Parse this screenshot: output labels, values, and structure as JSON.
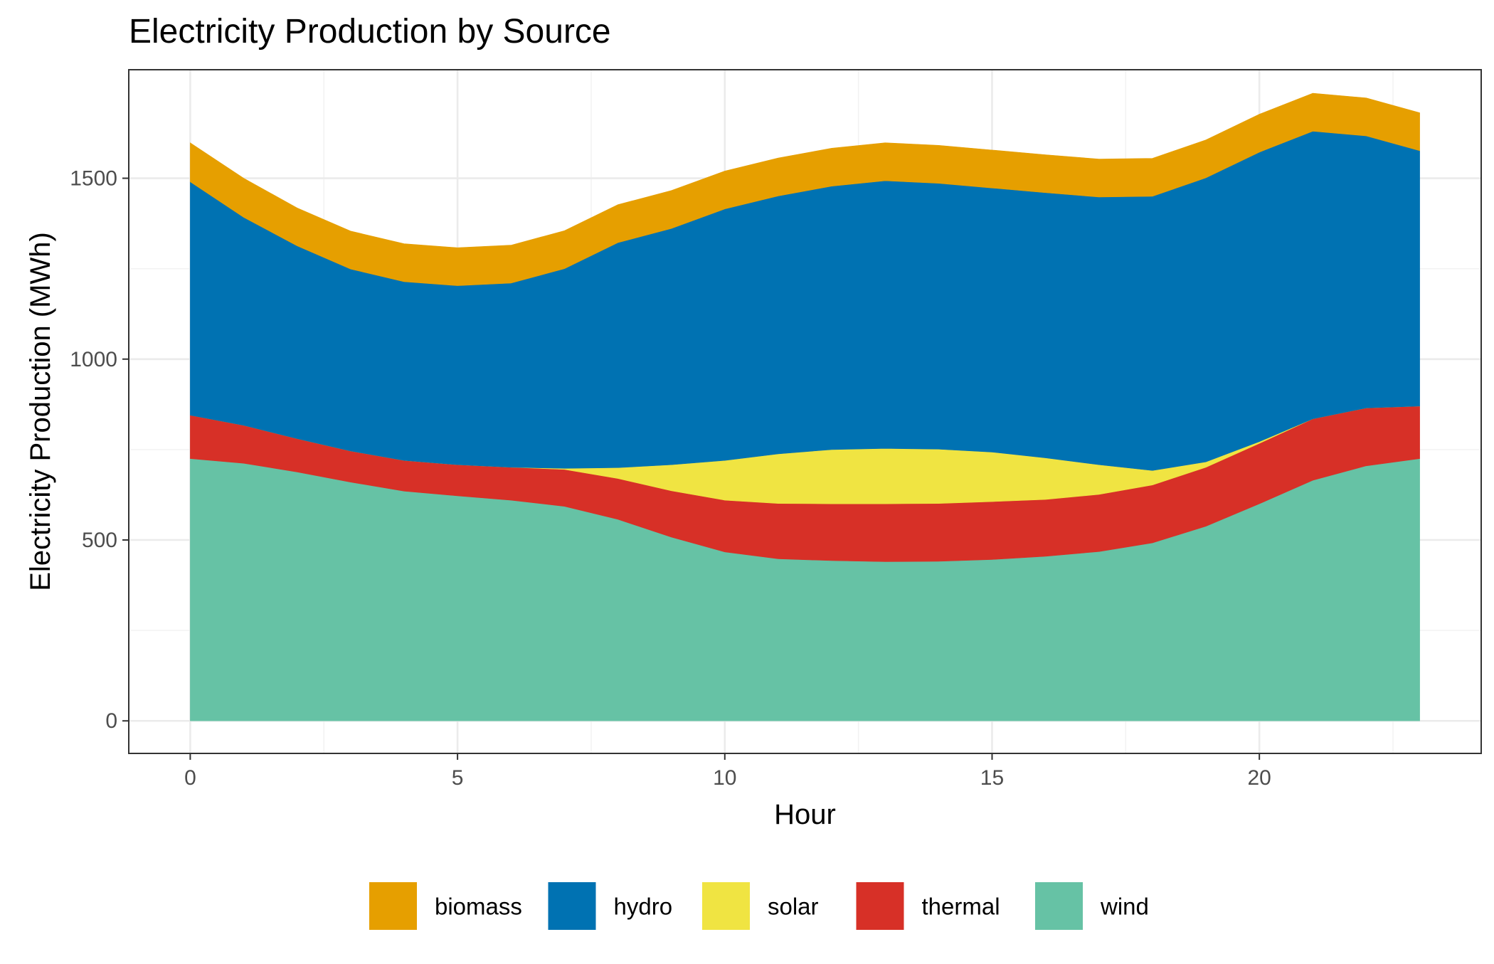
{
  "chart_data": {
    "type": "area",
    "stacked": true,
    "title": "Electricity Production by Source",
    "xlabel": "Hour",
    "ylabel": "Electricity Production (MWh)",
    "x": [
      0,
      1,
      2,
      3,
      4,
      5,
      6,
      7,
      8,
      9,
      10,
      11,
      12,
      13,
      14,
      15,
      16,
      17,
      18,
      19,
      20,
      21,
      22,
      23
    ],
    "xlim": [
      -1.15,
      24.15
    ],
    "ylim": [
      -90,
      1800
    ],
    "x_ticks": [
      0,
      5,
      10,
      15,
      20
    ],
    "y_ticks": [
      0,
      500,
      1000,
      1500
    ],
    "grid": true,
    "legend_position": "bottom",
    "series": [
      {
        "name": "wind",
        "color": "#66c2a5",
        "values": [
          725,
          712,
          688,
          660,
          635,
          622,
          610,
          593,
          557,
          508,
          467,
          448,
          443,
          440,
          441,
          446,
          455,
          468,
          492,
          538,
          600,
          665,
          705,
          725
        ]
      },
      {
        "name": "thermal",
        "color": "#d73027",
        "values": [
          120,
          105,
          92,
          86,
          85,
          86,
          91,
          102,
          113,
          128,
          143,
          153,
          157,
          160,
          160,
          160,
          157,
          158,
          160,
          163,
          167,
          170,
          160,
          145
        ]
      },
      {
        "name": "solar",
        "color": "#f0e442",
        "values": [
          0,
          0,
          0,
          0,
          0,
          0,
          0,
          3,
          30,
          72,
          110,
          137,
          150,
          153,
          150,
          137,
          115,
          82,
          40,
          15,
          5,
          0,
          0,
          0
        ]
      },
      {
        "name": "hydro",
        "color": "#0072b2",
        "values": [
          645,
          575,
          533,
          503,
          494,
          495,
          509,
          552,
          622,
          653,
          695,
          713,
          728,
          740,
          735,
          730,
          733,
          740,
          758,
          785,
          800,
          795,
          752,
          706
        ]
      },
      {
        "name": "biomass",
        "color": "#e69f00",
        "values": [
          108,
          108,
          105,
          105,
          105,
          105,
          105,
          105,
          105,
          105,
          105,
          105,
          105,
          105,
          105,
          105,
          105,
          105,
          105,
          105,
          105,
          105,
          105,
          105
        ]
      }
    ],
    "legend": [
      "biomass",
      "hydro",
      "solar",
      "thermal",
      "wind"
    ]
  }
}
